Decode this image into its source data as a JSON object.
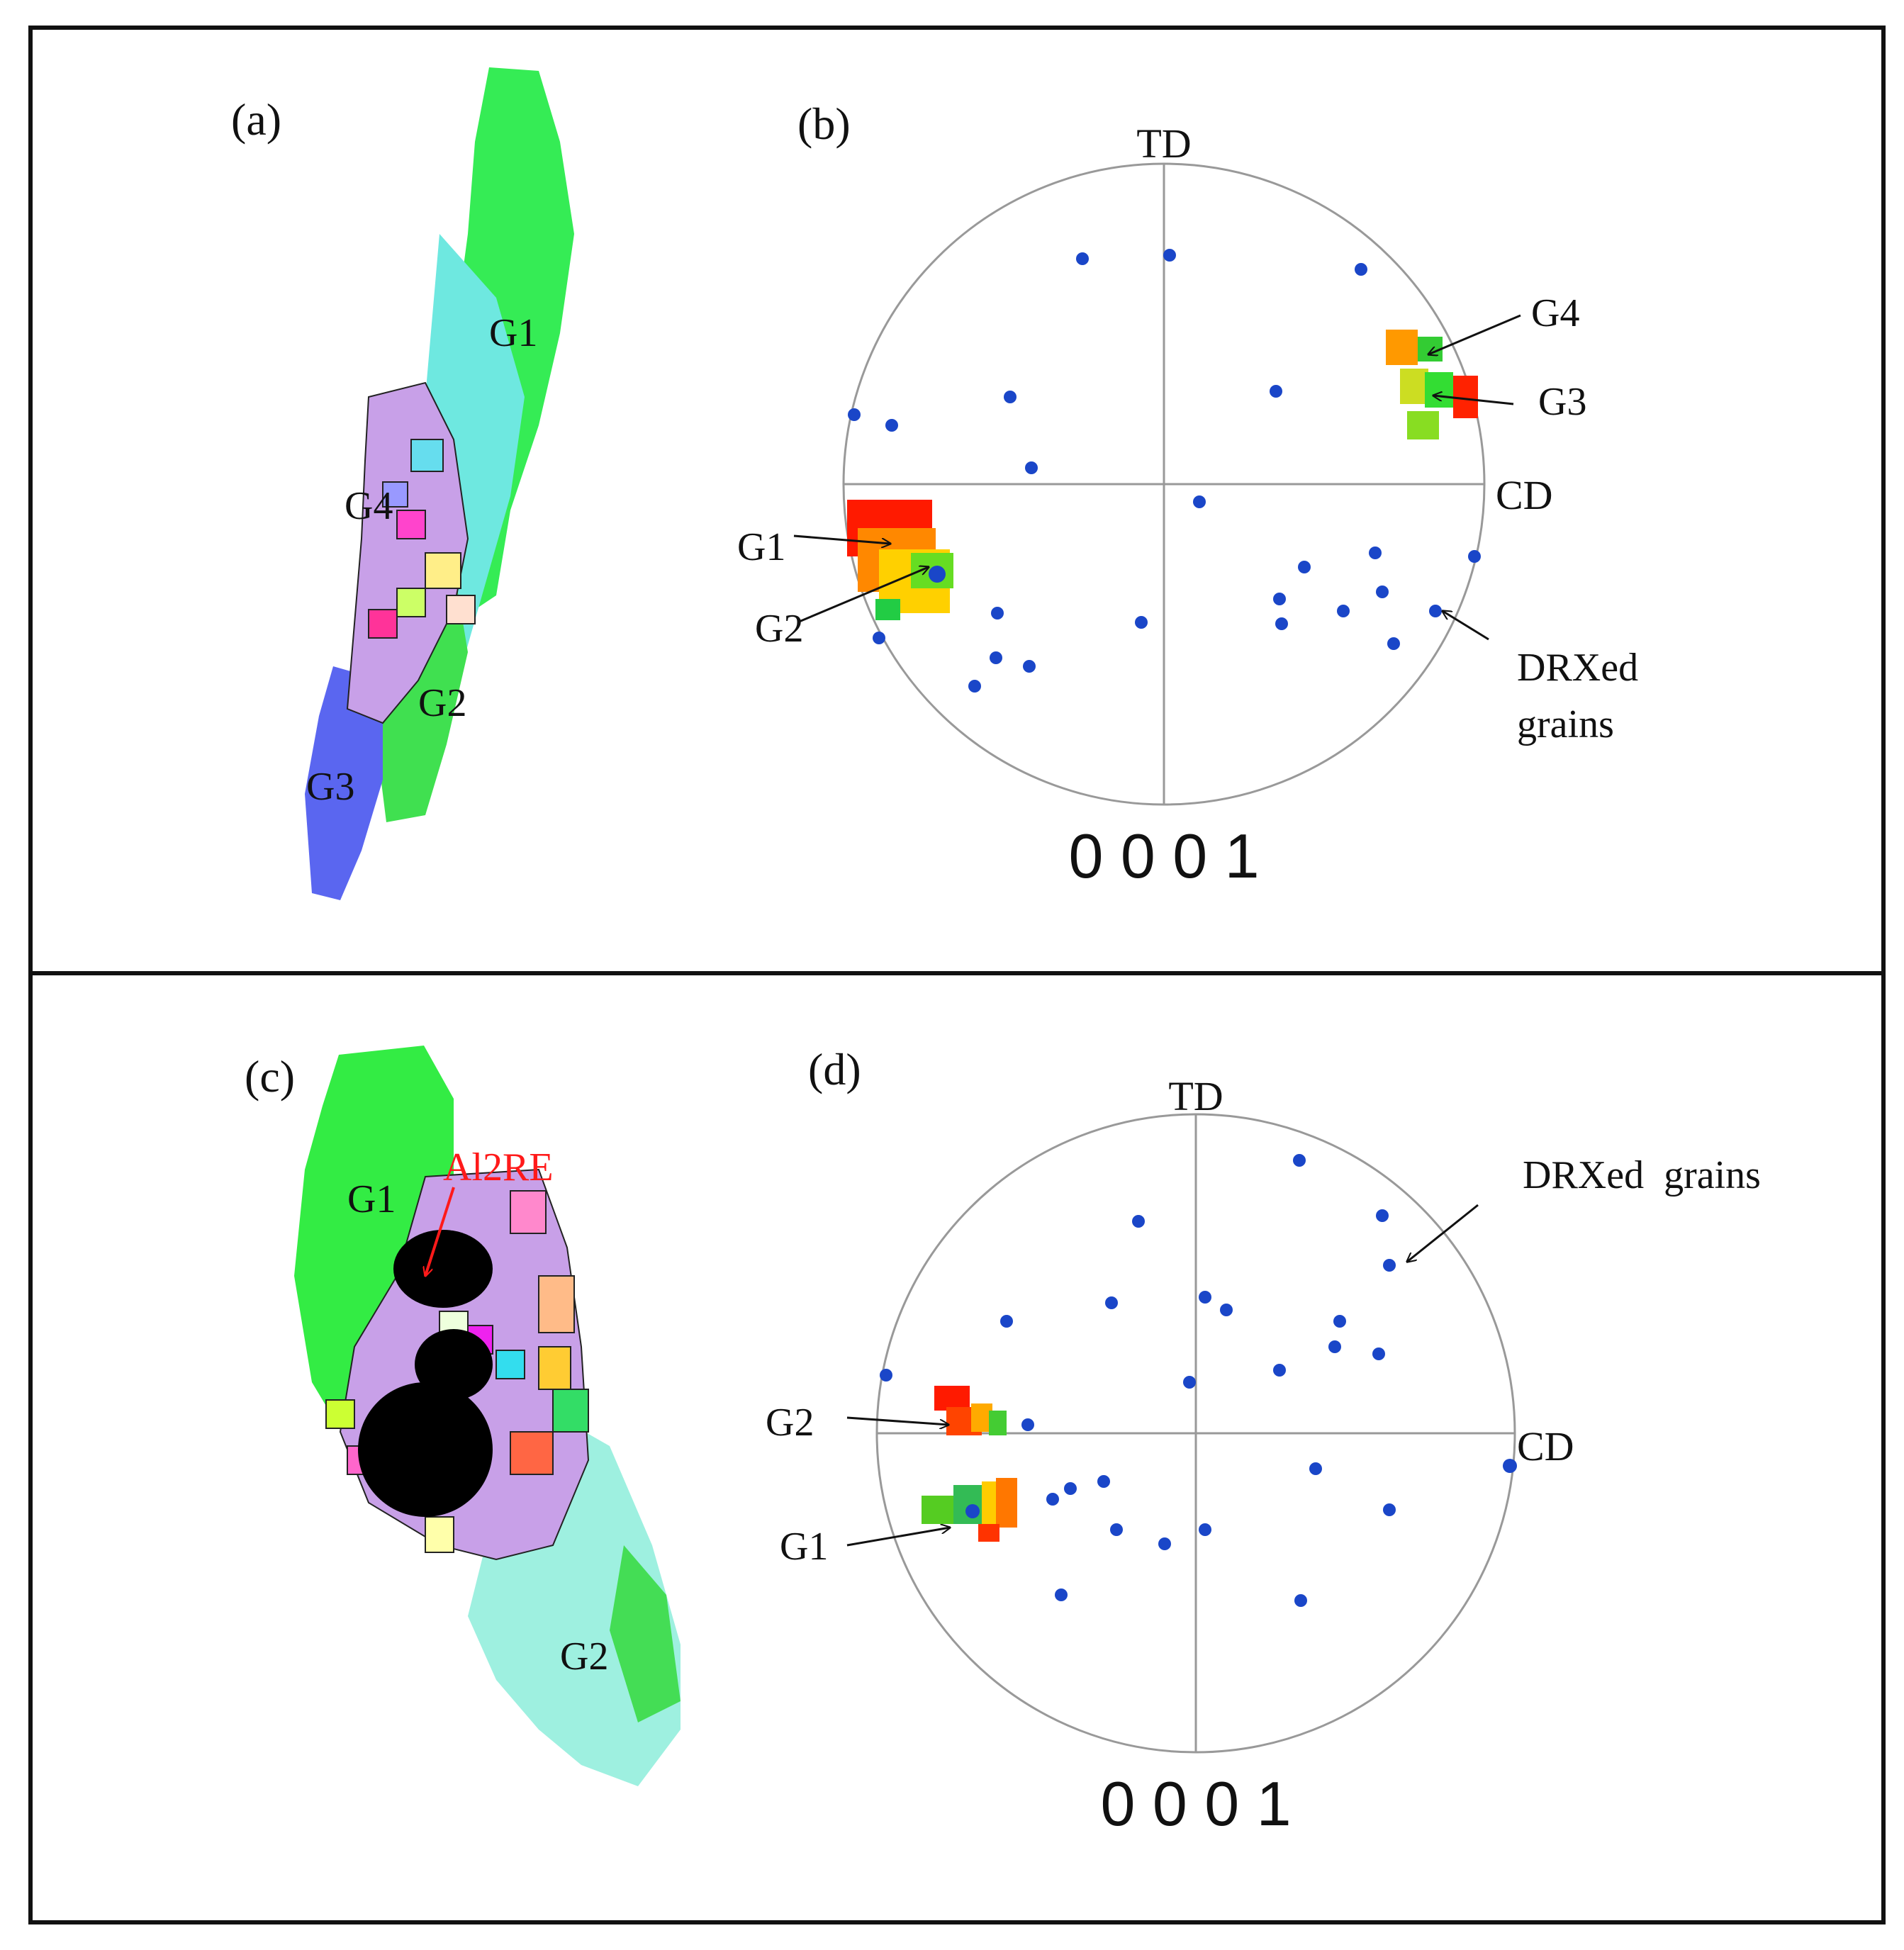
{
  "panels": {
    "a": {
      "label": "(a)",
      "grain_labels": [
        "G1",
        "G4",
        "G2",
        "G3"
      ]
    },
    "b": {
      "label": "(b)",
      "axis_top": "TD",
      "axis_right": "CD",
      "pole_index": "0 0 0 1",
      "annotations": [
        "G4",
        "G3",
        "G1",
        "G2"
      ],
      "drx_label": [
        "DRXed",
        "grains"
      ]
    },
    "c": {
      "label": "(c)",
      "grain_labels": [
        "G1",
        "G2"
      ],
      "phase_label": "Al2RE"
    },
    "d": {
      "label": "(d)",
      "axis_top": "TD",
      "axis_right": "CD",
      "pole_index": "0 0 0 1",
      "annotations": [
        "G2",
        "G1"
      ],
      "drx_label": "DRXed  grains"
    }
  },
  "colors": {
    "frame": "#111111",
    "circle": "#999999",
    "drx_points": "#1a46c8",
    "arrow": "#111111",
    "phase_arrow": "#ff1a1a"
  }
}
